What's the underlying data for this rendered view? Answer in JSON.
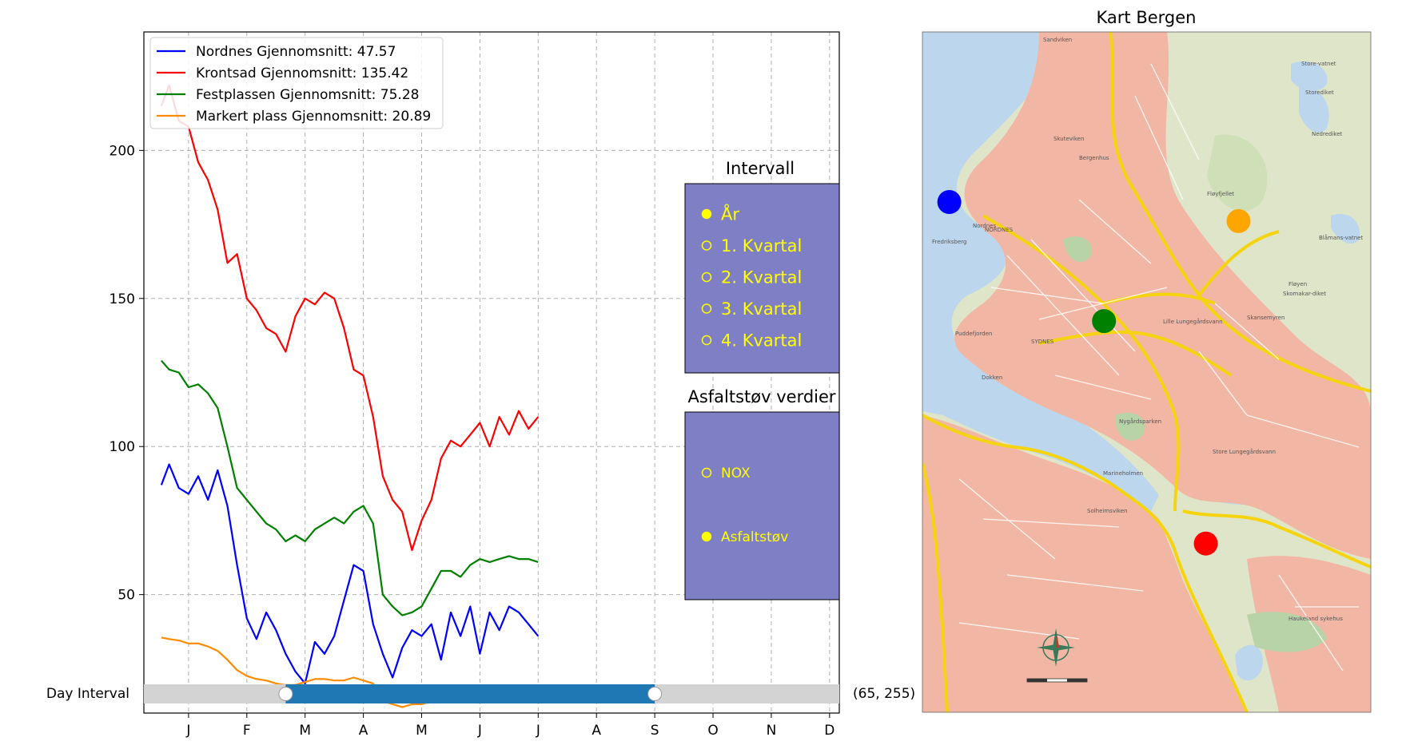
{
  "chart_data": [
    {
      "type": "line",
      "title": "",
      "xlabel": "",
      "ylabel": "",
      "x_ticks": [
        "J",
        "F",
        "M",
        "A",
        "M",
        "J",
        "J",
        "A",
        "S",
        "O",
        "N",
        "D"
      ],
      "x_tick_days": [
        15,
        45,
        75,
        105,
        135,
        165,
        195,
        225,
        255,
        285,
        315,
        345
      ],
      "xlim": [
        -8,
        350
      ],
      "y_ticks": [
        "50",
        "100",
        "150",
        "200"
      ],
      "y_tick_values": [
        50,
        100,
        150,
        200
      ],
      "ylim": [
        10,
        240
      ],
      "grid": true,
      "legend_position": "upper-left",
      "series": [
        {
          "name": "Nordnes Gjennomsnitt: 47.57",
          "color": "#0000ff",
          "x": [
            1,
            5,
            10,
            15,
            20,
            25,
            30,
            35,
            40,
            45,
            50,
            55,
            60,
            65,
            70,
            75,
            80,
            85,
            90,
            95,
            100,
            105,
            110,
            115,
            120,
            125,
            130,
            135,
            140,
            145,
            150,
            155,
            160,
            165,
            170,
            175,
            180,
            185,
            190,
            195
          ],
          "y": [
            87,
            94,
            86,
            84,
            90,
            82,
            92,
            80,
            60,
            42,
            35,
            44,
            38,
            30,
            24,
            20,
            34,
            30,
            36,
            48,
            60,
            58,
            40,
            30,
            22,
            32,
            38,
            36,
            40,
            28,
            44,
            36,
            46,
            30,
            44,
            38,
            46,
            44,
            40,
            36
          ]
        },
        {
          "name": "Krontsad Gjennomsnitt: 135.42",
          "color": "#ff0000",
          "x": [
            1,
            5,
            10,
            15,
            20,
            25,
            30,
            35,
            40,
            45,
            50,
            55,
            60,
            65,
            70,
            75,
            80,
            85,
            90,
            95,
            100,
            105,
            110,
            115,
            120,
            125,
            130,
            135,
            140,
            145,
            150,
            155,
            160,
            165,
            170,
            175,
            180,
            185,
            190,
            195
          ],
          "y": [
            215,
            222,
            210,
            208,
            196,
            190,
            180,
            162,
            165,
            150,
            146,
            140,
            138,
            132,
            144,
            150,
            148,
            152,
            150,
            140,
            126,
            124,
            110,
            90,
            82,
            78,
            65,
            75,
            82,
            96,
            102,
            100,
            104,
            108,
            100,
            110,
            104,
            112,
            106,
            110
          ]
        },
        {
          "name": "Festplassen Gjennomsnitt: 75.28",
          "color": "#008000",
          "x": [
            1,
            5,
            10,
            15,
            20,
            25,
            30,
            35,
            40,
            45,
            50,
            55,
            60,
            65,
            70,
            75,
            80,
            85,
            90,
            95,
            100,
            105,
            110,
            115,
            120,
            125,
            130,
            135,
            140,
            145,
            150,
            155,
            160,
            165,
            170,
            175,
            180,
            185,
            190,
            195
          ],
          "y": [
            129,
            126,
            125,
            120,
            121,
            118,
            113,
            100,
            86,
            82,
            78,
            74,
            72,
            68,
            70,
            68,
            72,
            74,
            76,
            74,
            78,
            80,
            74,
            50,
            46,
            43,
            44,
            46,
            52,
            58,
            58,
            56,
            60,
            62,
            61,
            62,
            63,
            62,
            62,
            61
          ]
        },
        {
          "name": "Markert plass Gjennomsnitt: 20.89",
          "color": "#ff8c00",
          "x": [
            1,
            5,
            10,
            15,
            20,
            25,
            30,
            35,
            40,
            45,
            50,
            55,
            60,
            65,
            70,
            75,
            80,
            85,
            90,
            95,
            100,
            105,
            110,
            115,
            120,
            125,
            130,
            135,
            140,
            145,
            150,
            155,
            160,
            165,
            170,
            175,
            180,
            185,
            190,
            195
          ],
          "y": [
            35.5,
            35,
            34.5,
            33.5,
            33.5,
            32.5,
            31,
            28,
            24.5,
            22.5,
            21.5,
            21,
            20,
            19.5,
            19.5,
            20.5,
            21.5,
            21.5,
            21,
            21,
            22,
            21,
            20,
            14,
            13,
            12,
            13,
            13,
            14,
            16,
            17,
            17,
            17,
            18,
            18,
            18,
            18.5,
            18,
            18,
            18
          ]
        }
      ]
    }
  ],
  "interval_panel": {
    "title": "Intervall",
    "options": [
      "År",
      "1. Kvartal",
      "2. Kvartal",
      "3. Kvartal",
      "4. Kvartal"
    ],
    "selected_index": 0
  },
  "measure_panel": {
    "title": "Asfaltstøv verdier",
    "options": [
      "NOX",
      "Asfaltstøv"
    ],
    "selected_index": 1
  },
  "slider": {
    "label": "Day Interval",
    "range_min": -8,
    "range_max": 350,
    "value_low": 65,
    "value_high": 255,
    "value_text": "(65, 255)"
  },
  "map": {
    "title": "Kart Bergen",
    "labels": [
      "Sandviken",
      "Skuteviken",
      "Bergenhus",
      "NORDNES",
      "SYDNES",
      "Fløyen",
      "Store Lungegårdsvann",
      "Storediket",
      "Nedrediket",
      "Blåmans-vatnet",
      "Skomakar-diket",
      "Store-vatnet",
      "Puddefjorden",
      "Solheimsviken",
      "Haukeland sykehus",
      "Lille Lungegårdsvann",
      "Nygårdsparken",
      "Fløyfjellet",
      "Fredriksberg",
      "Dokken",
      "Marineholmen",
      "Nordnes",
      "Skansemyren"
    ],
    "markers": [
      {
        "name": "Nordnes",
        "color": "#0000ff",
        "fx": 0.06,
        "fy": 0.25
      },
      {
        "name": "Markert plass",
        "color": "#ffa500",
        "fx": 0.705,
        "fy": 0.278
      },
      {
        "name": "Festplassen",
        "color": "#008000",
        "fx": 0.405,
        "fy": 0.425
      },
      {
        "name": "Krontsad",
        "color": "#ff0000",
        "fx": 0.632,
        "fy": 0.752
      }
    ]
  }
}
